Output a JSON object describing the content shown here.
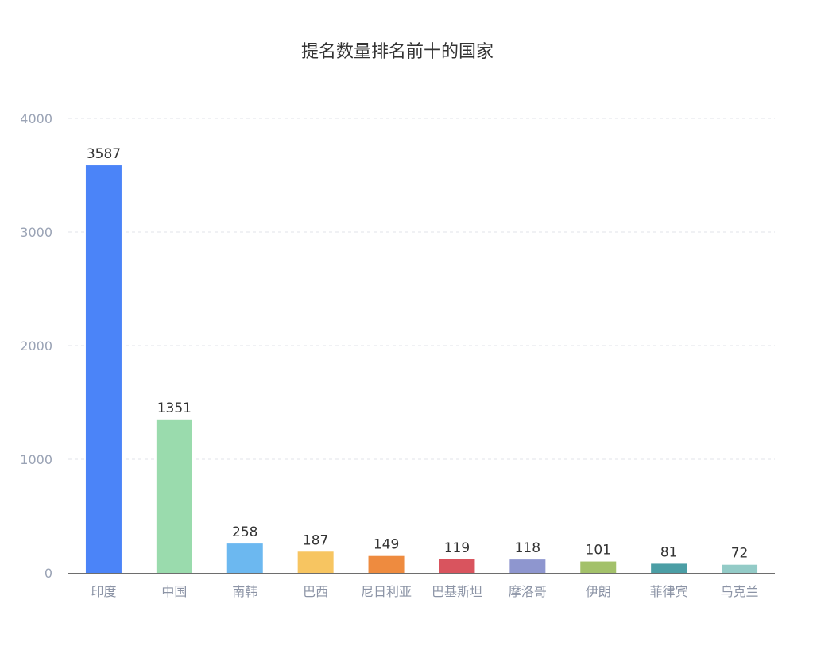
{
  "chart_data": {
    "type": "bar",
    "title": "提名数量排名前十的国家",
    "xlabel": "",
    "ylabel": "",
    "ylim": [
      0,
      4000
    ],
    "yticks": [
      0,
      1000,
      2000,
      3000,
      4000
    ],
    "grid": true,
    "categories": [
      "印度",
      "中国",
      "南韩",
      "巴西",
      "尼日利亚",
      "巴基斯坦",
      "摩洛哥",
      "伊朗",
      "菲律宾",
      "乌克兰"
    ],
    "values": [
      3587,
      1351,
      258,
      187,
      149,
      119,
      118,
      101,
      81,
      72
    ],
    "colors": [
      "#4b84f8",
      "#9adbad",
      "#6cb8f0",
      "#f7c561",
      "#ee8b3f",
      "#d9545e",
      "#8e96cf",
      "#a3c16a",
      "#4b9ea5",
      "#93cbc7"
    ]
  }
}
